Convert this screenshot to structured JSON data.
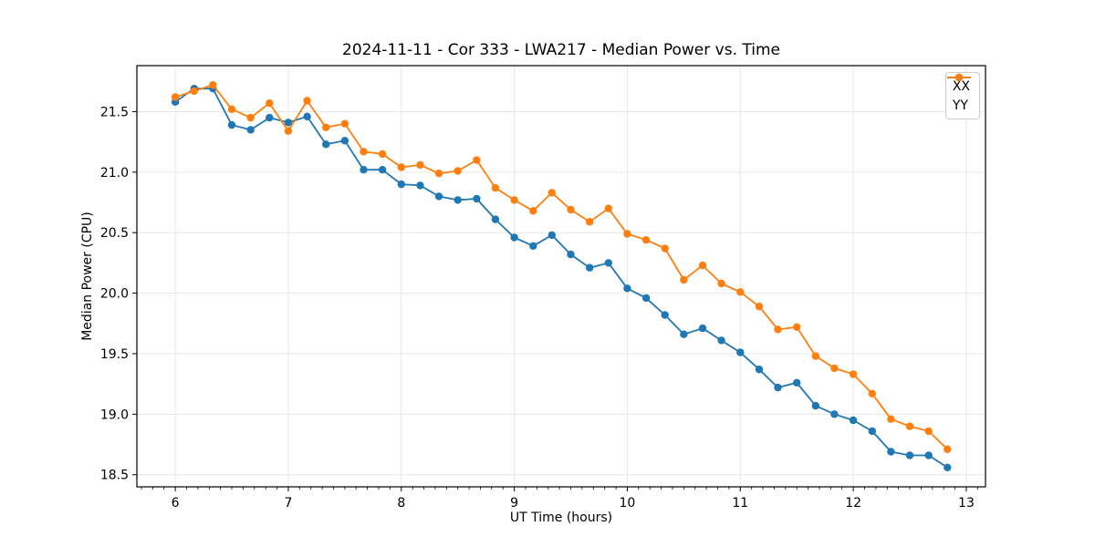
{
  "chart_data": {
    "type": "line",
    "title": "2024-11-11 - Cor 333 - LWA217 - Median Power vs. Time",
    "xlabel": "UT Time (hours)",
    "ylabel": "Median Power (CPU)",
    "x": [
      6.0,
      6.167,
      6.333,
      6.5,
      6.667,
      6.833,
      7.0,
      7.167,
      7.333,
      7.5,
      7.667,
      7.833,
      8.0,
      8.167,
      8.333,
      8.5,
      8.667,
      8.833,
      9.0,
      9.167,
      9.333,
      9.5,
      9.667,
      9.833,
      10.0,
      10.167,
      10.333,
      10.5,
      10.667,
      10.833,
      11.0,
      11.167,
      11.333,
      11.5,
      11.667,
      11.833,
      12.0,
      12.167,
      12.333,
      12.5,
      12.667,
      12.833
    ],
    "series": [
      {
        "name": "XX",
        "color": "#1f77b4",
        "values": [
          21.58,
          21.69,
          21.69,
          21.39,
          21.35,
          21.45,
          21.41,
          21.46,
          21.23,
          21.26,
          21.02,
          21.02,
          20.9,
          20.89,
          20.8,
          20.77,
          20.78,
          20.61,
          20.46,
          20.39,
          20.48,
          20.32,
          20.21,
          20.25,
          20.04,
          19.96,
          19.82,
          19.66,
          19.71,
          19.61,
          19.51,
          19.37,
          19.22,
          19.26,
          19.07,
          19.0,
          18.95,
          18.86,
          18.69,
          18.66,
          18.66,
          18.56
        ]
      },
      {
        "name": "YY",
        "color": "#ff7f0e",
        "values": [
          21.62,
          21.67,
          21.72,
          21.52,
          21.45,
          21.57,
          21.34,
          21.59,
          21.37,
          21.4,
          21.17,
          21.15,
          21.04,
          21.06,
          20.99,
          21.01,
          21.1,
          20.87,
          20.77,
          20.68,
          20.83,
          20.69,
          20.59,
          20.7,
          20.49,
          20.44,
          20.37,
          20.11,
          20.23,
          20.08,
          20.01,
          19.89,
          19.7,
          19.72,
          19.48,
          19.38,
          19.33,
          19.17,
          18.96,
          18.9,
          18.86,
          18.71
        ]
      }
    ],
    "xlim": [
      5.66,
      13.17
    ],
    "ylim": [
      18.4,
      21.88
    ],
    "xticks": [
      {
        "v": 6,
        "label": "6"
      },
      {
        "v": 7,
        "label": "7"
      },
      {
        "v": 8,
        "label": "8"
      },
      {
        "v": 9,
        "label": "9"
      },
      {
        "v": 10,
        "label": "10"
      },
      {
        "v": 11,
        "label": "11"
      },
      {
        "v": 12,
        "label": "12"
      },
      {
        "v": 13,
        "label": "13"
      }
    ],
    "yticks": [
      {
        "v": 18.5,
        "label": "18.5"
      },
      {
        "v": 19.0,
        "label": "19.0"
      },
      {
        "v": 19.5,
        "label": "19.5"
      },
      {
        "v": 20.0,
        "label": "20.0"
      },
      {
        "v": 20.5,
        "label": "20.5"
      },
      {
        "v": 21.0,
        "label": "21.0"
      },
      {
        "v": 21.5,
        "label": "21.5"
      }
    ],
    "x_minor_step": 0.1,
    "grid": true,
    "legend_position": "upper-right",
    "colors": {
      "grid": "#e8e8e8",
      "spine": "#000000",
      "tick": "#000000",
      "background": "#ffffff"
    }
  }
}
